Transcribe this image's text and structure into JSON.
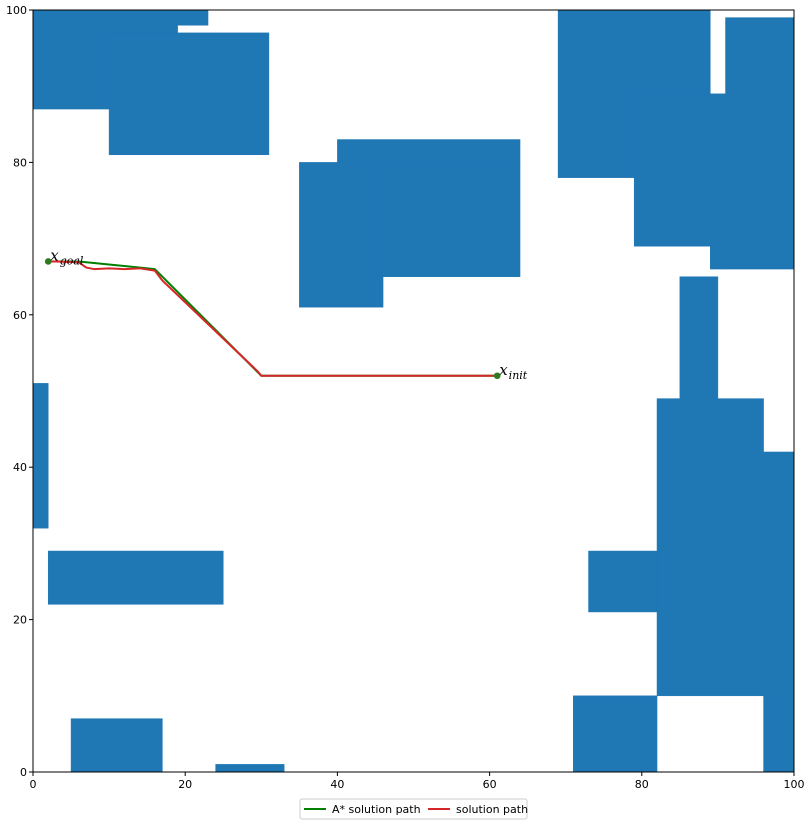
{
  "chart_data": {
    "type": "scatter",
    "title": "",
    "xlabel": "",
    "ylabel": "",
    "xlim": [
      0,
      100
    ],
    "ylim": [
      0,
      100
    ],
    "grid": false,
    "legend_position": "bottom-center",
    "obstacle_color": "#1f77b4",
    "x_ticks": [
      "0",
      "20",
      "40",
      "60",
      "80",
      "100"
    ],
    "y_ticks": [
      "0",
      "20",
      "40",
      "60",
      "80",
      "100"
    ],
    "obstacles": [
      {
        "x0": 0,
        "y0": 87,
        "x1": 19,
        "y1": 100
      },
      {
        "x0": 19,
        "y0": 98,
        "x1": 23,
        "y1": 100
      },
      {
        "x0": 10,
        "y0": 81,
        "x1": 31,
        "y1": 97
      },
      {
        "x0": 35,
        "y0": 61,
        "x1": 46,
        "y1": 80
      },
      {
        "x0": 46,
        "y0": 65,
        "x1": 64,
        "y1": 80
      },
      {
        "x0": 40,
        "y0": 80,
        "x1": 64,
        "y1": 83
      },
      {
        "x0": 69,
        "y0": 78,
        "x1": 89,
        "y1": 100
      },
      {
        "x0": 91,
        "y0": 66,
        "x1": 100,
        "y1": 99
      },
      {
        "x0": 79,
        "y0": 69,
        "x1": 91,
        "y1": 89
      },
      {
        "x0": 89,
        "y0": 66,
        "x1": 91,
        "y1": 69
      },
      {
        "x0": 85,
        "y0": 49,
        "x1": 90,
        "y1": 65
      },
      {
        "x0": 82,
        "y0": 10,
        "x1": 96,
        "y1": 49
      },
      {
        "x0": 96,
        "y0": 0,
        "x1": 100,
        "y1": 42
      },
      {
        "x0": 73,
        "y0": 21,
        "x1": 82,
        "y1": 29
      },
      {
        "x0": 71,
        "y0": 0,
        "x1": 82,
        "y1": 10
      },
      {
        "x0": 98,
        "y0": 0,
        "x1": 100,
        "y1": 10
      },
      {
        "x0": 0,
        "y0": 32,
        "x1": 2,
        "y1": 51
      },
      {
        "x0": 2,
        "y0": 22,
        "x1": 25,
        "y1": 29
      },
      {
        "x0": 5,
        "y0": 0,
        "x1": 17,
        "y1": 7
      },
      {
        "x0": 24,
        "y0": 0,
        "x1": 33,
        "y1": 1
      }
    ],
    "series": [
      {
        "name": "A* solution path",
        "color": "#008000",
        "x": [
          61,
          30,
          16,
          6,
          2
        ],
        "y": [
          52,
          52,
          66,
          67,
          67
        ]
      },
      {
        "name": "solution path",
        "color": "#d62728",
        "x": [
          61,
          30,
          29.5,
          17,
          16,
          14,
          12,
          10,
          8,
          7,
          6,
          3,
          2
        ],
        "y": [
          52,
          52,
          52.6,
          64.5,
          65.8,
          66.1,
          66,
          66.1,
          66,
          66.2,
          66.9,
          67,
          67
        ]
      }
    ],
    "points": [
      {
        "name": "init",
        "x": 61,
        "y": 52,
        "label_main": "x",
        "label_sub": "init",
        "color": "#2d7a1f"
      },
      {
        "name": "goal",
        "x": 2,
        "y": 67,
        "label_main": "x",
        "label_sub": "goal",
        "color": "#2d7a1f"
      }
    ]
  }
}
